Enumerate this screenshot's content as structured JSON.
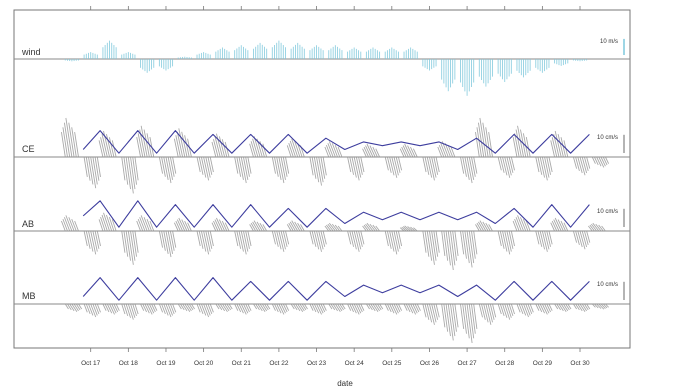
{
  "chart_data": {
    "type": "line",
    "title": "",
    "xlabel": "date",
    "ylabel": "",
    "x_ticks": [
      "Oct 17",
      "Oct 18",
      "Oct 19",
      "Oct 20",
      "Oct 21",
      "Oct 22",
      "Oct 23",
      "Oct 24",
      "Oct 25",
      "Oct 26",
      "Oct 27",
      "Oct 28",
      "Oct 29",
      "Oct 30"
    ],
    "x_range_days": [
      16.45,
      30.85
    ],
    "grid": false,
    "legend": "none",
    "colors": {
      "wind": "#7ec8dc",
      "current_sticks": "#9a9a9a",
      "tide": "#3d3d9e",
      "baseline": "#8a8a8a",
      "frame": "#777777"
    },
    "panels": [
      {
        "label": "wind",
        "scale_label": "10 m/s",
        "scale_value": 10,
        "unit": "m/s",
        "series": [
          {
            "kind": "sticks",
            "x": [
              16.5,
              17.0,
              17.5,
              18.0,
              18.5,
              19.0,
              19.5,
              20.0,
              20.5,
              21.0,
              21.5,
              22.0,
              22.5,
              23.0,
              23.5,
              24.0,
              24.5,
              25.0,
              25.5,
              26.0,
              26.5,
              27.0,
              27.5,
              28.0,
              28.5,
              29.0,
              29.5,
              30.0,
              30.5
            ],
            "v": [
              -1,
              3,
              8,
              3,
              -6,
              -5,
              1,
              3,
              5,
              6,
              7,
              8,
              7,
              6,
              6,
              5,
              5,
              5,
              5,
              -5,
              -14,
              -16,
              -12,
              -10,
              -8,
              -6,
              -3,
              -1,
              0
            ]
          }
        ]
      },
      {
        "label": "CE",
        "scale_label": "10 cm/s",
        "scale_value": 10,
        "unit": "cm/s",
        "series": [
          {
            "kind": "sticks",
            "x": [
              16.5,
              17.0,
              17.5,
              18.0,
              18.5,
              19.0,
              19.5,
              20.0,
              20.5,
              21.0,
              21.5,
              22.0,
              22.5,
              23.0,
              23.5,
              24.0,
              24.5,
              25.0,
              25.5,
              26.0,
              26.5,
              27.0,
              27.5,
              28.0,
              28.5,
              29.0,
              29.5,
              30.0,
              30.5
            ],
            "v": [
              15,
              -12,
              10,
              -14,
              12,
              -10,
              11,
              -9,
              9,
              -10,
              8,
              -10,
              7,
              -11,
              6,
              -9,
              5,
              -8,
              5,
              -9,
              6,
              -10,
              15,
              -8,
              12,
              -9,
              10,
              -7,
              -4
            ]
          },
          {
            "kind": "tide",
            "x": [
              16.8,
              17.25,
              17.75,
              18.25,
              18.75,
              19.25,
              19.75,
              20.25,
              20.75,
              21.25,
              21.75,
              22.25,
              22.75,
              23.25,
              23.75,
              24.25,
              24.75,
              25.25,
              25.75,
              26.25,
              26.75,
              27.25,
              27.75,
              28.25,
              28.75,
              29.25,
              29.75,
              30.25
            ],
            "v": [
              2,
              7,
              1,
              7,
              1,
              7,
              1,
              6,
              1,
              6,
              1,
              6,
              1,
              5,
              2,
              4,
              3,
              4,
              3,
              4,
              2,
              5,
              1,
              6,
              1,
              6,
              1,
              6
            ]
          }
        ]
      },
      {
        "label": "AB",
        "scale_label": "10 cm/s",
        "scale_value": 10,
        "unit": "cm/s",
        "series": [
          {
            "kind": "sticks",
            "x": [
              16.5,
              17.0,
              17.5,
              18.0,
              18.5,
              19.0,
              19.5,
              20.0,
              20.5,
              21.0,
              21.5,
              22.0,
              22.5,
              23.0,
              23.5,
              24.0,
              24.5,
              25.0,
              25.5,
              26.0,
              26.5,
              27.0,
              27.5,
              28.0,
              28.5,
              29.0,
              29.5,
              30.0,
              30.5
            ],
            "v": [
              6,
              -9,
              7,
              -13,
              6,
              -10,
              5,
              -9,
              5,
              -9,
              4,
              -8,
              4,
              -8,
              3,
              -8,
              3,
              -9,
              2,
              -13,
              -15,
              -14,
              4,
              -9,
              6,
              -8,
              5,
              -7,
              3
            ]
          },
          {
            "kind": "tide",
            "x": [
              16.8,
              17.25,
              17.75,
              18.25,
              18.75,
              19.25,
              19.75,
              20.25,
              20.75,
              21.25,
              21.75,
              22.25,
              22.75,
              23.25,
              23.75,
              24.25,
              24.75,
              25.25,
              25.75,
              26.25,
              26.75,
              27.25,
              27.75,
              28.25,
              28.75,
              29.25,
              29.75,
              30.25
            ],
            "v": [
              4,
              8,
              1,
              8,
              1,
              7,
              1,
              7,
              1,
              7,
              1,
              6,
              1,
              6,
              2,
              5,
              3,
              5,
              3,
              5,
              3,
              5,
              2,
              6,
              1,
              7,
              1,
              7
            ]
          }
        ]
      },
      {
        "label": "MB",
        "scale_label": "10 cm/s",
        "scale_value": 10,
        "unit": "cm/s",
        "series": [
          {
            "kind": "sticks",
            "x": [
              16.5,
              17.0,
              17.5,
              18.0,
              18.5,
              19.0,
              19.5,
              20.0,
              20.5,
              21.0,
              21.5,
              22.0,
              22.5,
              23.0,
              23.5,
              24.0,
              24.5,
              25.0,
              25.5,
              26.0,
              26.5,
              27.0,
              27.5,
              28.0,
              28.5,
              29.0,
              29.5,
              30.0,
              30.5
            ],
            "v": [
              -3,
              -5,
              -4,
              -6,
              -4,
              -5,
              -3,
              -5,
              -3,
              -4,
              -3,
              -4,
              -3,
              -4,
              -3,
              -4,
              -3,
              -4,
              -4,
              -8,
              -14,
              -15,
              -8,
              -6,
              -5,
              -4,
              -3,
              -3,
              -2
            ]
          },
          {
            "kind": "tide",
            "x": [
              16.8,
              17.25,
              17.75,
              18.25,
              18.75,
              19.25,
              19.75,
              20.25,
              20.75,
              21.25,
              21.75,
              22.25,
              22.75,
              23.25,
              23.75,
              24.25,
              24.75,
              25.25,
              25.75,
              26.25,
              26.75,
              27.25,
              27.75,
              28.25,
              28.75,
              29.25,
              29.75,
              30.25
            ],
            "v": [
              2,
              7,
              1,
              7,
              1,
              7,
              1,
              7,
              1,
              6,
              1,
              6,
              1,
              6,
              2,
              5,
              3,
              5,
              3,
              5,
              2,
              5,
              1,
              6,
              1,
              6,
              1,
              6
            ]
          }
        ]
      }
    ]
  }
}
